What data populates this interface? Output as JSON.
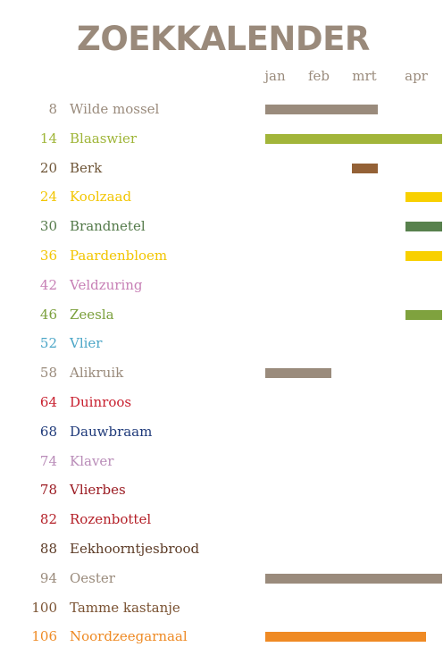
{
  "title": "ZOEKKALENDER",
  "months": [
    "jan",
    "feb",
    "mrt",
    "apr"
  ],
  "items": [
    {
      "page": "8",
      "name": "Wilde mossel",
      "color": "#9a8b7c",
      "bar_color": "#9a8b7c",
      "bars": [
        [
          0.0,
          2.45
        ]
      ]
    },
    {
      "page": "14",
      "name": "Blaaswier",
      "color": "#9fb538",
      "bar_color": "#a2b53a",
      "bars": [
        [
          0.0,
          3.85
        ]
      ]
    },
    {
      "page": "20",
      "name": "Berk",
      "color": "#6e5537",
      "bar_color": "#946136",
      "bars": [
        [
          1.88,
          2.45
        ]
      ]
    },
    {
      "page": "24",
      "name": "Koolzaad",
      "color": "#f2c500",
      "bar_color": "#f8d000",
      "bars": [
        [
          3.05,
          3.85
        ]
      ]
    },
    {
      "page": "30",
      "name": "Brandnetel",
      "color": "#547a4a",
      "bar_color": "#58814d",
      "bars": [
        [
          3.05,
          3.85
        ]
      ]
    },
    {
      "page": "36",
      "name": "Paardenbloem",
      "color": "#f2c500",
      "bar_color": "#f8d000",
      "bars": [
        [
          3.05,
          3.85
        ]
      ]
    },
    {
      "page": "42",
      "name": "Veldzuring",
      "color": "#c77fb5",
      "bar_color": "#c77fb5",
      "bars": []
    },
    {
      "page": "46",
      "name": "Zeesla",
      "color": "#7ba03c",
      "bar_color": "#7fa23e",
      "bars": [
        [
          3.05,
          3.85
        ]
      ]
    },
    {
      "page": "52",
      "name": "Vlier",
      "color": "#4ca6c7",
      "bar_color": "#4ca6c7",
      "bars": []
    },
    {
      "page": "58",
      "name": "Alikruik",
      "color": "#9a8b7c",
      "bar_color": "#9a8b7c",
      "bars": [
        [
          0.0,
          1.43
        ]
      ]
    },
    {
      "page": "64",
      "name": "Duinroos",
      "color": "#c8202f",
      "bar_color": "#c8202f",
      "bars": []
    },
    {
      "page": "68",
      "name": "Dauwbraam",
      "color": "#1f3a7a",
      "bar_color": "#1f3a7a",
      "bars": []
    },
    {
      "page": "74",
      "name": "Klaver",
      "color": "#b98cb8",
      "bar_color": "#b98cb8",
      "bars": []
    },
    {
      "page": "78",
      "name": "Vlierbes",
      "color": "#9b1b22",
      "bar_color": "#9b1b22",
      "bars": []
    },
    {
      "page": "82",
      "name": "Rozenbottel",
      "color": "#b42028",
      "bar_color": "#b42028",
      "bars": []
    },
    {
      "page": "88",
      "name": "Eekhoorntjesbrood",
      "color": "#5c3b26",
      "bar_color": "#5c3b26",
      "bars": []
    },
    {
      "page": "94",
      "name": "Oester",
      "color": "#9a8b7c",
      "bar_color": "#9a8b7c",
      "bars": [
        [
          0.0,
          3.85
        ]
      ]
    },
    {
      "page": "100",
      "name": "Tamme kastanje",
      "color": "#7a5232",
      "bar_color": "#7a5232",
      "bars": []
    },
    {
      "page": "106",
      "name": "Noordzeegarnaal",
      "color": "#ee8a24",
      "bar_color": "#ef8a24",
      "bars": [
        [
          0.0,
          3.5
        ]
      ]
    }
  ]
}
